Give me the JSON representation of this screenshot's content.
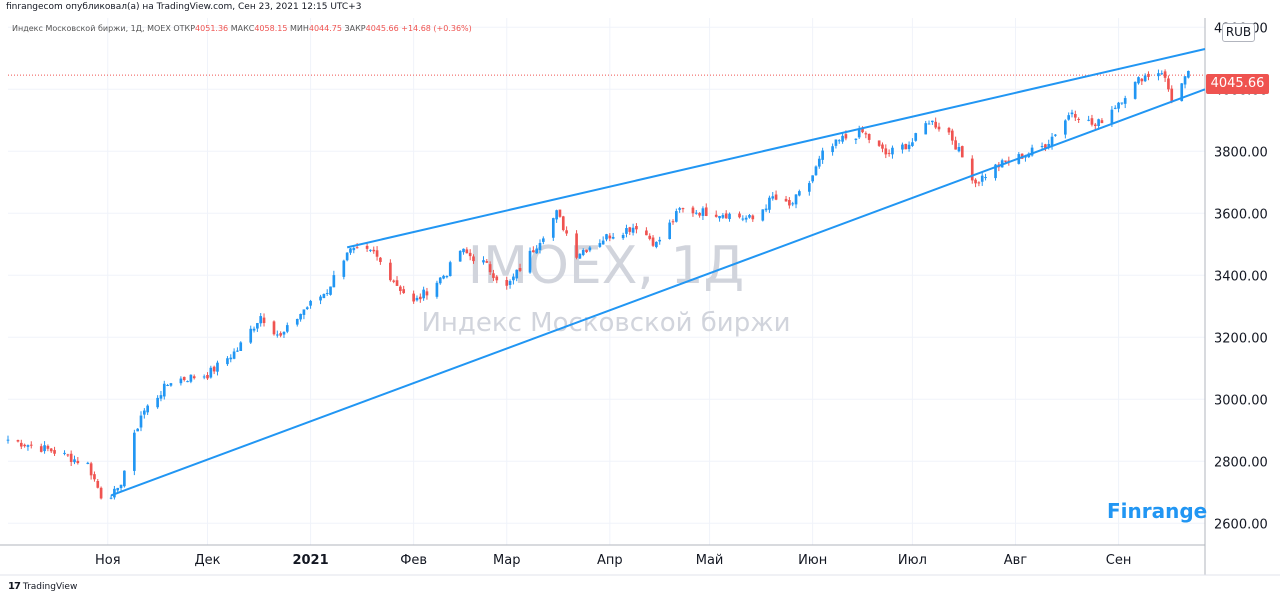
{
  "header": {
    "published": "finrangecom опубликовал(а) на TradingView.com, Сен 23, 2021 12:15 UTC+3"
  },
  "legend": {
    "symbol": "Индекс Московской биржи, 1Д, MOEX",
    "open_label": "ОТКР",
    "open": "4051.36",
    "high_label": "МАКС",
    "high": "4058.15",
    "low_label": "МИН",
    "low": "4044.75",
    "close_label": "ЗАКР",
    "close": "4045.66",
    "change": "+14.68 (+0.36%)"
  },
  "currency": "RUB",
  "last_price": "4045.66",
  "brand": "Finrange",
  "footer": {
    "logo": "17",
    "label": "TradingView"
  },
  "colors": {
    "up": "#2196f3",
    "down": "#ef5350",
    "trendline": "#2196f3",
    "grid": "#f0f3fa",
    "watermark": "#d1d4dc"
  },
  "chart_data": {
    "type": "candlestick",
    "title": "",
    "watermark_symbol": "IMOEX, 1Д",
    "watermark_name": "Индекс Московской биржи",
    "ylim": [
      2530,
      4230
    ],
    "y_ticks": [
      "2600.00",
      "2800.00",
      "3000.00",
      "3200.00",
      "3400.00",
      "3600.00",
      "3800.00",
      "4000.00",
      "4200.00"
    ],
    "y_tick_values": [
      2600,
      2800,
      3000,
      3200,
      3400,
      3600,
      3800,
      4000,
      4200
    ],
    "x_labels": [
      {
        "label": "Ноя",
        "date": "2020-11-01",
        "bold": false
      },
      {
        "label": "Дек",
        "date": "2020-12-01",
        "bold": false
      },
      {
        "label": "2021",
        "date": "2021-01-01",
        "bold": true
      },
      {
        "label": "Фев",
        "date": "2021-02-01",
        "bold": false
      },
      {
        "label": "Мар",
        "date": "2021-03-01",
        "bold": false
      },
      {
        "label": "Апр",
        "date": "2021-04-01",
        "bold": false
      },
      {
        "label": "Май",
        "date": "2021-05-01",
        "bold": false
      },
      {
        "label": "Июн",
        "date": "2021-06-01",
        "bold": false
      },
      {
        "label": "Июл",
        "date": "2021-07-01",
        "bold": false
      },
      {
        "label": "Авг",
        "date": "2021-08-01",
        "bold": false
      },
      {
        "label": "Сен",
        "date": "2021-09-01",
        "bold": false
      }
    ],
    "x_range": [
      "2020-10-02",
      "2021-09-27"
    ],
    "price_line": 4045.66,
    "anchors": [
      {
        "date": "2020-10-02",
        "close": 2870
      },
      {
        "date": "2020-10-15",
        "close": 2835
      },
      {
        "date": "2020-10-26",
        "close": 2790
      },
      {
        "date": "2020-10-30",
        "close": 2690
      },
      {
        "date": "2020-11-04",
        "close": 2700
      },
      {
        "date": "2020-11-11",
        "close": 2950
      },
      {
        "date": "2020-11-20",
        "close": 3060
      },
      {
        "date": "2020-12-01",
        "close": 3080
      },
      {
        "date": "2020-12-10",
        "close": 3160
      },
      {
        "date": "2020-12-17",
        "close": 3270
      },
      {
        "date": "2020-12-23",
        "close": 3200
      },
      {
        "date": "2020-12-30",
        "close": 3290
      },
      {
        "date": "2021-01-06",
        "close": 3350
      },
      {
        "date": "2021-01-12",
        "close": 3480
      },
      {
        "date": "2021-01-20",
        "close": 3470
      },
      {
        "date": "2021-01-27",
        "close": 3370
      },
      {
        "date": "2021-02-01",
        "close": 3310
      },
      {
        "date": "2021-02-05",
        "close": 3350
      },
      {
        "date": "2021-02-11",
        "close": 3410
      },
      {
        "date": "2021-02-15",
        "close": 3480
      },
      {
        "date": "2021-02-22",
        "close": 3440
      },
      {
        "date": "2021-03-01",
        "close": 3360
      },
      {
        "date": "2021-03-10",
        "close": 3500
      },
      {
        "date": "2021-03-16",
        "close": 3600
      },
      {
        "date": "2021-03-22",
        "close": 3470
      },
      {
        "date": "2021-04-01",
        "close": 3530
      },
      {
        "date": "2021-04-09",
        "close": 3560
      },
      {
        "date": "2021-04-15",
        "close": 3500
      },
      {
        "date": "2021-04-22",
        "close": 3610
      },
      {
        "date": "2021-05-05",
        "close": 3600
      },
      {
        "date": "2021-05-14",
        "close": 3580
      },
      {
        "date": "2021-05-20",
        "close": 3650
      },
      {
        "date": "2021-05-25",
        "close": 3620
      },
      {
        "date": "2021-05-31",
        "close": 3700
      },
      {
        "date": "2021-06-04",
        "close": 3790
      },
      {
        "date": "2021-06-10",
        "close": 3840
      },
      {
        "date": "2021-06-16",
        "close": 3860
      },
      {
        "date": "2021-06-23",
        "close": 3790
      },
      {
        "date": "2021-07-01",
        "close": 3830
      },
      {
        "date": "2021-07-06",
        "close": 3900
      },
      {
        "date": "2021-07-12",
        "close": 3860
      },
      {
        "date": "2021-07-20",
        "close": 3700
      },
      {
        "date": "2021-07-26",
        "close": 3750
      },
      {
        "date": "2021-08-04",
        "close": 3790
      },
      {
        "date": "2021-08-10",
        "close": 3820
      },
      {
        "date": "2021-08-18",
        "close": 3930
      },
      {
        "date": "2021-08-25",
        "close": 3880
      },
      {
        "date": "2021-09-01",
        "close": 3960
      },
      {
        "date": "2021-09-08",
        "close": 4040
      },
      {
        "date": "2021-09-14",
        "close": 4060
      },
      {
        "date": "2021-09-17",
        "close": 3970
      },
      {
        "date": "2021-09-22",
        "close": 4045.66
      }
    ],
    "trendlines": [
      {
        "name": "",
        "from": {
          "date": "2020-11-02",
          "price": 2690
        },
        "to": {
          "date": "2021-09-27",
          "price": 4000
        }
      },
      {
        "name": "",
        "from": {
          "date": "2021-01-12",
          "price": 3490
        },
        "to": {
          "date": "2021-09-27",
          "price": 4130
        }
      }
    ]
  }
}
